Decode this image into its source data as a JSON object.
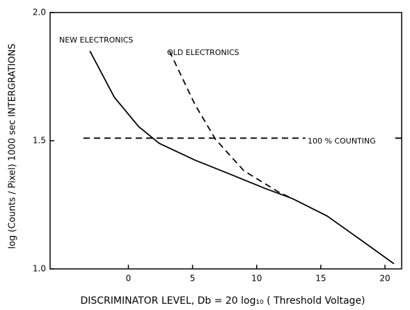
{
  "chart_data": {
    "type": "line",
    "xlabel": "DISCRIMINATOR LEVEL, Db = 20 log₁₀ ( Threshold Voltage)",
    "ylabel": "log (Counts / Pixel) 1000 sec INTERGRATIONS",
    "xlim": [
      -6.1,
      21.3
    ],
    "ylim": [
      1.0,
      2.0
    ],
    "xticks": [
      0,
      5,
      10,
      15,
      20
    ],
    "yticks": [
      {
        "value": 1.0,
        "label": "1.0"
      },
      {
        "value": 1.5,
        "label": "1.5"
      },
      {
        "value": 2.0,
        "label": "2.0"
      }
    ],
    "series": [
      {
        "name": "NEW ELECTRONICS",
        "color": "#000000",
        "dashed": false,
        "x": [
          -3.0,
          -1.1,
          0.8,
          2.4,
          5.2,
          7.9,
          10.6,
          12.8,
          15.5,
          18.2,
          20.7
        ],
        "values": [
          1.85,
          1.67,
          1.555,
          1.49,
          1.424,
          1.37,
          1.315,
          1.274,
          1.206,
          1.11,
          1.02
        ]
      },
      {
        "name": "OLD ELECTRONICS",
        "color": "#000000",
        "dashed": true,
        "x": [
          3.2,
          5.2,
          6.8,
          9.0,
          11.7,
          12.8
        ],
        "values": [
          1.85,
          1.64,
          1.505,
          1.383,
          1.3,
          1.274
        ]
      },
      {
        "name": "100 % COUNTING",
        "color": "#000000",
        "dashed": true,
        "x": [
          -3.5,
          13.8,
          14.0,
          20.8,
          21.3
        ],
        "values": [
          1.51,
          1.51,
          null,
          1.51,
          1.51
        ]
      }
    ]
  }
}
